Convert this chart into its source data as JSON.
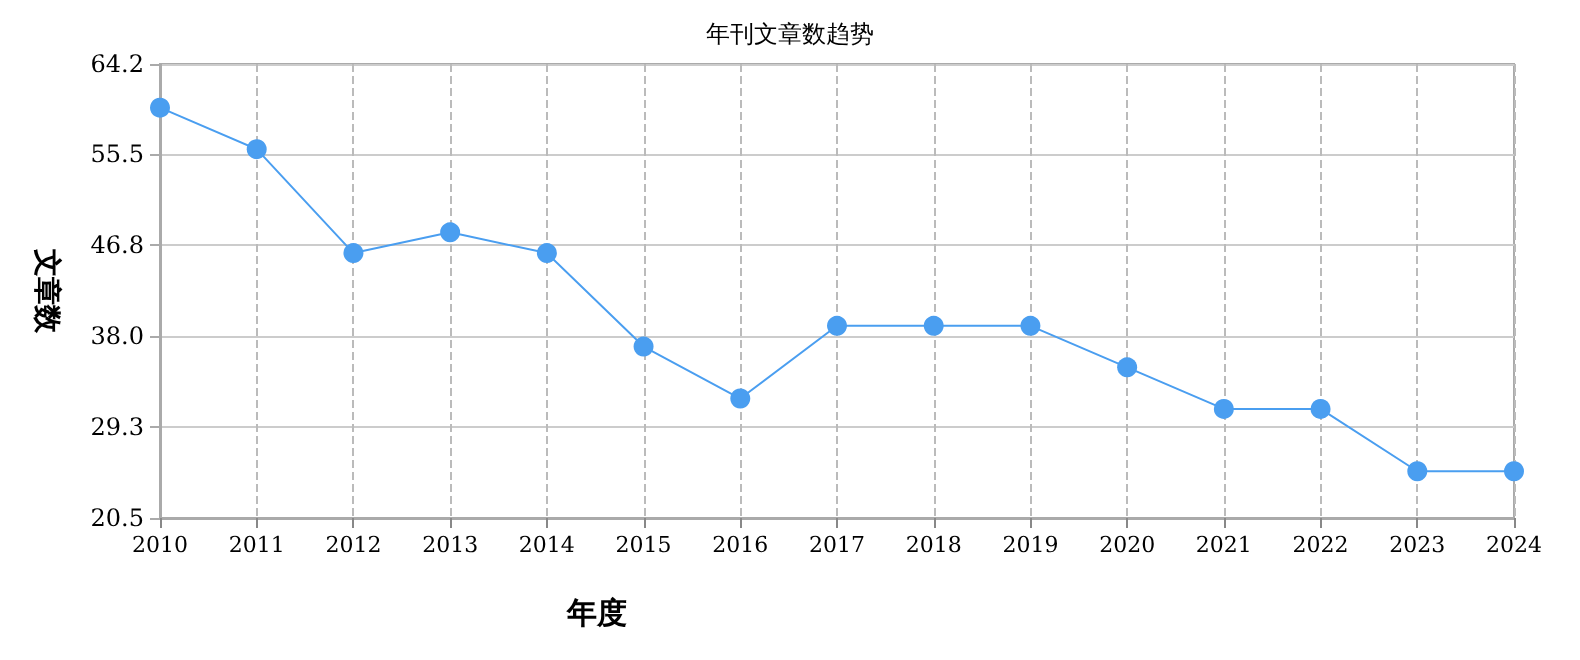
{
  "chart_data": {
    "type": "line",
    "title": "年刊文章数趋势",
    "xlabel": "年度",
    "ylabel": "文章数",
    "categories": [
      "2010",
      "2011",
      "2012",
      "2013",
      "2014",
      "2015",
      "2016",
      "2017",
      "2018",
      "2019",
      "2020",
      "2021",
      "2022",
      "2023",
      "2024"
    ],
    "series": [
      {
        "color": "#4a9ef0",
        "values": [
          60,
          56,
          46,
          48,
          46,
          37,
          32,
          39,
          39,
          39,
          35,
          31,
          31,
          25,
          25
        ]
      }
    ],
    "ylim": [
      20.5,
      64.2
    ],
    "yticks": [
      20.5,
      29.3,
      {
        "value": 38,
        "label": "38.0"
      },
      46.8,
      55.5,
      64.2
    ],
    "grid": true,
    "marker": "circle",
    "line_style": "solid"
  }
}
